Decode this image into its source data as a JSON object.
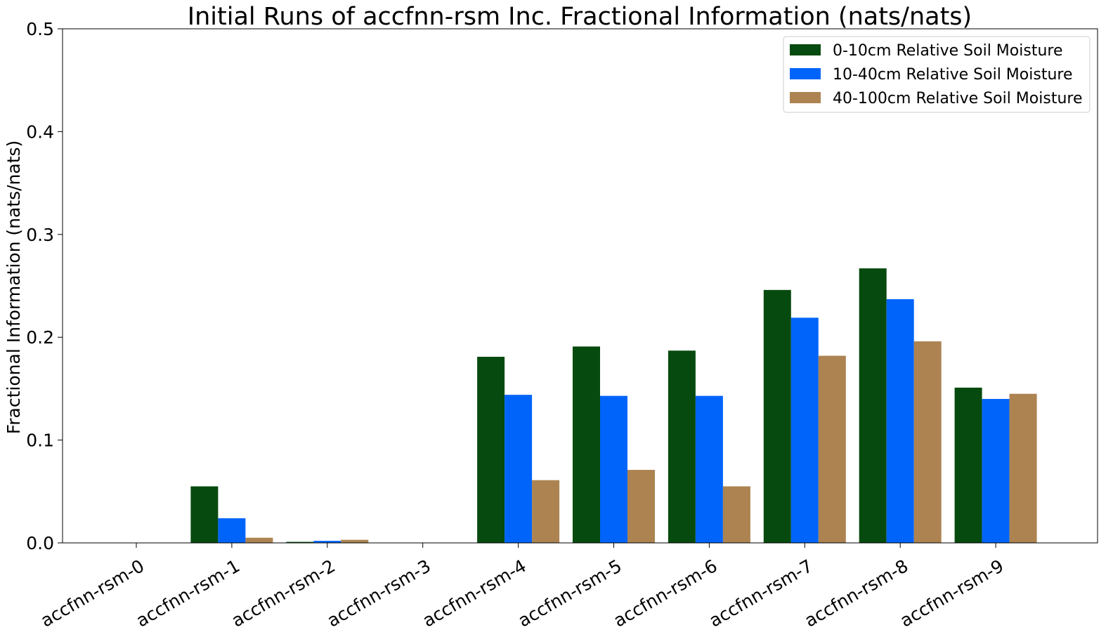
{
  "chart_data": {
    "type": "bar",
    "title": "Initial Runs of accfnn-rsm Inc. Fractional Information (nats/nats)",
    "xlabel": "",
    "ylabel": "Fractional Information (nats/nats)",
    "ylim": [
      0,
      0.5
    ],
    "yticks": [
      "0.0",
      "0.1",
      "0.2",
      "0.3",
      "0.4",
      "0.5"
    ],
    "grid": false,
    "legend_position": "top-right",
    "categories": [
      "accfnn-rsm-0",
      "accfnn-rsm-1",
      "accfnn-rsm-2",
      "accfnn-rsm-3",
      "accfnn-rsm-4",
      "accfnn-rsm-5",
      "accfnn-rsm-6",
      "accfnn-rsm-7",
      "accfnn-rsm-8",
      "accfnn-rsm-9"
    ],
    "series": [
      {
        "name": "0-10cm Relative Soil Moisture",
        "color": "#074a0f",
        "values": [
          0.0,
          0.055,
          0.001,
          0.0,
          0.181,
          0.191,
          0.187,
          0.246,
          0.267,
          0.151
        ]
      },
      {
        "name": "10-40cm Relative Soil Moisture",
        "color": "#0064fa",
        "values": [
          0.0,
          0.024,
          0.002,
          0.0,
          0.144,
          0.143,
          0.143,
          0.219,
          0.237,
          0.14
        ]
      },
      {
        "name": "40-100cm Relative Soil Moisture",
        "color": "#ac8351",
        "values": [
          0.0,
          0.005,
          0.003,
          0.0,
          0.061,
          0.071,
          0.055,
          0.182,
          0.196,
          0.145
        ]
      }
    ]
  }
}
